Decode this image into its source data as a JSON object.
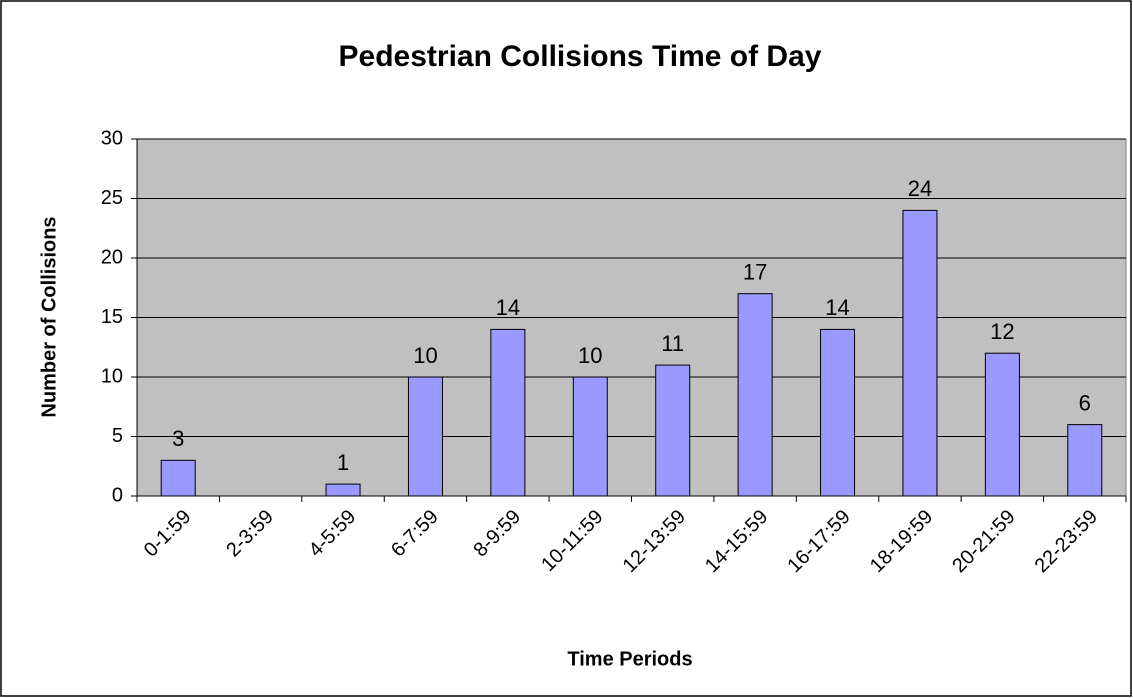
{
  "chart_data": {
    "type": "bar",
    "title": "Pedestrian Collisions Time of Day",
    "xlabel": "Time Periods",
    "ylabel": "Number of Collisions",
    "categories": [
      "0-1:59",
      "2-3:59",
      "4-5:59",
      "6-7:59",
      "8-9:59",
      "10-11:59",
      "12-13:59",
      "14-15:59",
      "16-17:59",
      "18-19:59",
      "20-21:59",
      "22-23:59"
    ],
    "values": [
      3,
      null,
      1,
      10,
      14,
      10,
      11,
      17,
      14,
      24,
      12,
      6
    ],
    "color": "#9999ff",
    "plot_background": "#c0c0c0",
    "ylim": [
      0,
      30
    ],
    "yticks": [
      0,
      5,
      10,
      15,
      20,
      25,
      30
    ],
    "grid": true
  }
}
